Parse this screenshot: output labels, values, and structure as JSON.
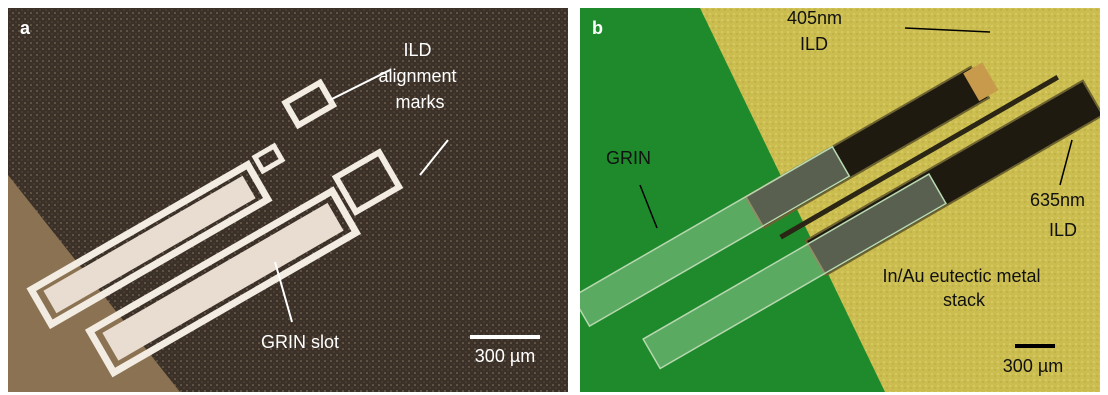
{
  "panels": [
    {
      "label": "a",
      "annotations": [
        {
          "lines": [
            "ILD",
            "alignment",
            "marks"
          ]
        },
        {
          "lines": [
            "GRIN slot"
          ]
        }
      ],
      "scale_bar": "300 µm"
    },
    {
      "label": "b",
      "annotations": [
        {
          "lines": [
            "405nm",
            "ILD"
          ]
        },
        {
          "lines": [
            "GRIN"
          ]
        },
        {
          "lines": [
            "635nm",
            "ILD"
          ]
        },
        {
          "lines": [
            "In/Au eutectic metal",
            "stack"
          ]
        }
      ],
      "scale_bar": "300 µm"
    }
  ]
}
